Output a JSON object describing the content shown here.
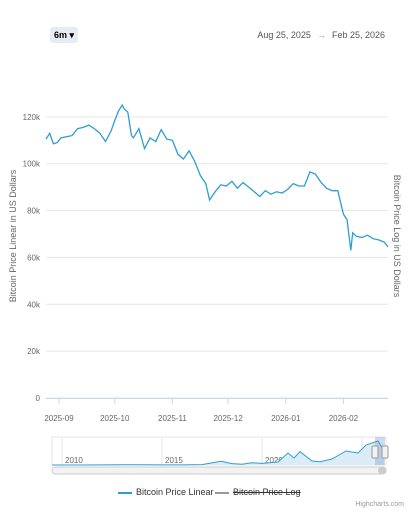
{
  "range_selector": {
    "selected_label": "6m",
    "dropdown_icon": "caret-down-icon"
  },
  "date_range": {
    "from": "Aug 25, 2025",
    "arrow": "→",
    "to": "Feb 25, 2026"
  },
  "credits": "Highcharts.com",
  "colors": {
    "line": "#2b9fd1",
    "grid": "#e6e6e6",
    "navigator_fill": "#dcecf6",
    "navigator_mask": "rgba(102,133,194,0.3)"
  },
  "chart_data": {
    "type": "line",
    "title": "",
    "ylabel": "Bitcoin Price Linear in US Dollars",
    "ylabel_right": "Bitcoin Price Log in US Dollars",
    "ylim": [
      0,
      140000
    ],
    "yticks": [
      0,
      20000,
      40000,
      60000,
      80000,
      100000,
      120000
    ],
    "ytick_labels": [
      "0",
      "20k",
      "40k",
      "60k",
      "80k",
      "100k",
      "120k"
    ],
    "xticks": [
      "2025-09",
      "2025-10",
      "2025-11",
      "2025-12",
      "2026-01",
      "2026-02"
    ],
    "xrange": [
      "2025-08-25",
      "2026-02-25"
    ],
    "series": [
      {
        "name": "Bitcoin Price Linear",
        "visible": true,
        "x": [
          "2025-08-25",
          "2025-08-27",
          "2025-08-29",
          "2025-08-31",
          "2025-09-02",
          "2025-09-05",
          "2025-09-08",
          "2025-09-11",
          "2025-09-14",
          "2025-09-17",
          "2025-09-20",
          "2025-09-23",
          "2025-09-26",
          "2025-09-29",
          "2025-10-01",
          "2025-10-03",
          "2025-10-05",
          "2025-10-06",
          "2025-10-08",
          "2025-10-10",
          "2025-10-11",
          "2025-10-14",
          "2025-10-17",
          "2025-10-20",
          "2025-10-23",
          "2025-10-26",
          "2025-10-29",
          "2025-11-01",
          "2025-11-04",
          "2025-11-07",
          "2025-11-10",
          "2025-11-13",
          "2025-11-16",
          "2025-11-19",
          "2025-11-21",
          "2025-11-24",
          "2025-11-27",
          "2025-11-30",
          "2025-12-03",
          "2025-12-06",
          "2025-12-09",
          "2025-12-12",
          "2025-12-15",
          "2025-12-18",
          "2025-12-21",
          "2025-12-24",
          "2025-12-27",
          "2025-12-30",
          "2026-01-02",
          "2026-01-05",
          "2026-01-08",
          "2026-01-11",
          "2026-01-14",
          "2026-01-17",
          "2026-01-20",
          "2026-01-23",
          "2026-01-26",
          "2026-01-29",
          "2026-02-01",
          "2026-02-03",
          "2026-02-05",
          "2026-02-06",
          "2026-02-08",
          "2026-02-11",
          "2026-02-14",
          "2026-02-17",
          "2026-02-20",
          "2026-02-23",
          "2026-02-25"
        ],
        "values": [
          110500,
          113000,
          108500,
          109000,
          111000,
          111500,
          112000,
          115000,
          115500,
          116500,
          115000,
          113000,
          109500,
          114000,
          118500,
          122500,
          125000,
          123500,
          122000,
          112000,
          111000,
          115000,
          106500,
          111000,
          109500,
          114500,
          110500,
          110000,
          104000,
          102000,
          105500,
          101000,
          95000,
          91500,
          84500,
          88000,
          91000,
          90500,
          92500,
          89500,
          92000,
          90000,
          88000,
          86000,
          88500,
          87000,
          88000,
          87500,
          89000,
          91500,
          90500,
          90500,
          96500,
          95500,
          92000,
          89500,
          88500,
          88500,
          78500,
          76000,
          63000,
          70500,
          69000,
          68500,
          69500,
          68000,
          67500,
          66500,
          64500
        ]
      },
      {
        "name": "Bitcoin Price Log",
        "visible": false,
        "values": []
      }
    ],
    "navigator": {
      "xticks": [
        "2010",
        "2015",
        "2020",
        "2025"
      ],
      "xrange": [
        2009.5,
        2026.2
      ],
      "x": [
        2009.5,
        2011,
        2013,
        2013.9,
        2015,
        2016,
        2017,
        2017.95,
        2018.5,
        2019,
        2019.5,
        2020,
        2020.8,
        2021.3,
        2021.6,
        2021.9,
        2022.5,
        2022.9,
        2023.5,
        2024.2,
        2024.8,
        2025.2,
        2025.8,
        2026.1
      ],
      "values": [
        0,
        200,
        800,
        1000,
        300,
        600,
        2000,
        19000,
        7000,
        4000,
        11000,
        8000,
        15000,
        60000,
        35000,
        67000,
        20000,
        16500,
        30000,
        70000,
        60000,
        100000,
        120000,
        70000
      ]
    }
  }
}
